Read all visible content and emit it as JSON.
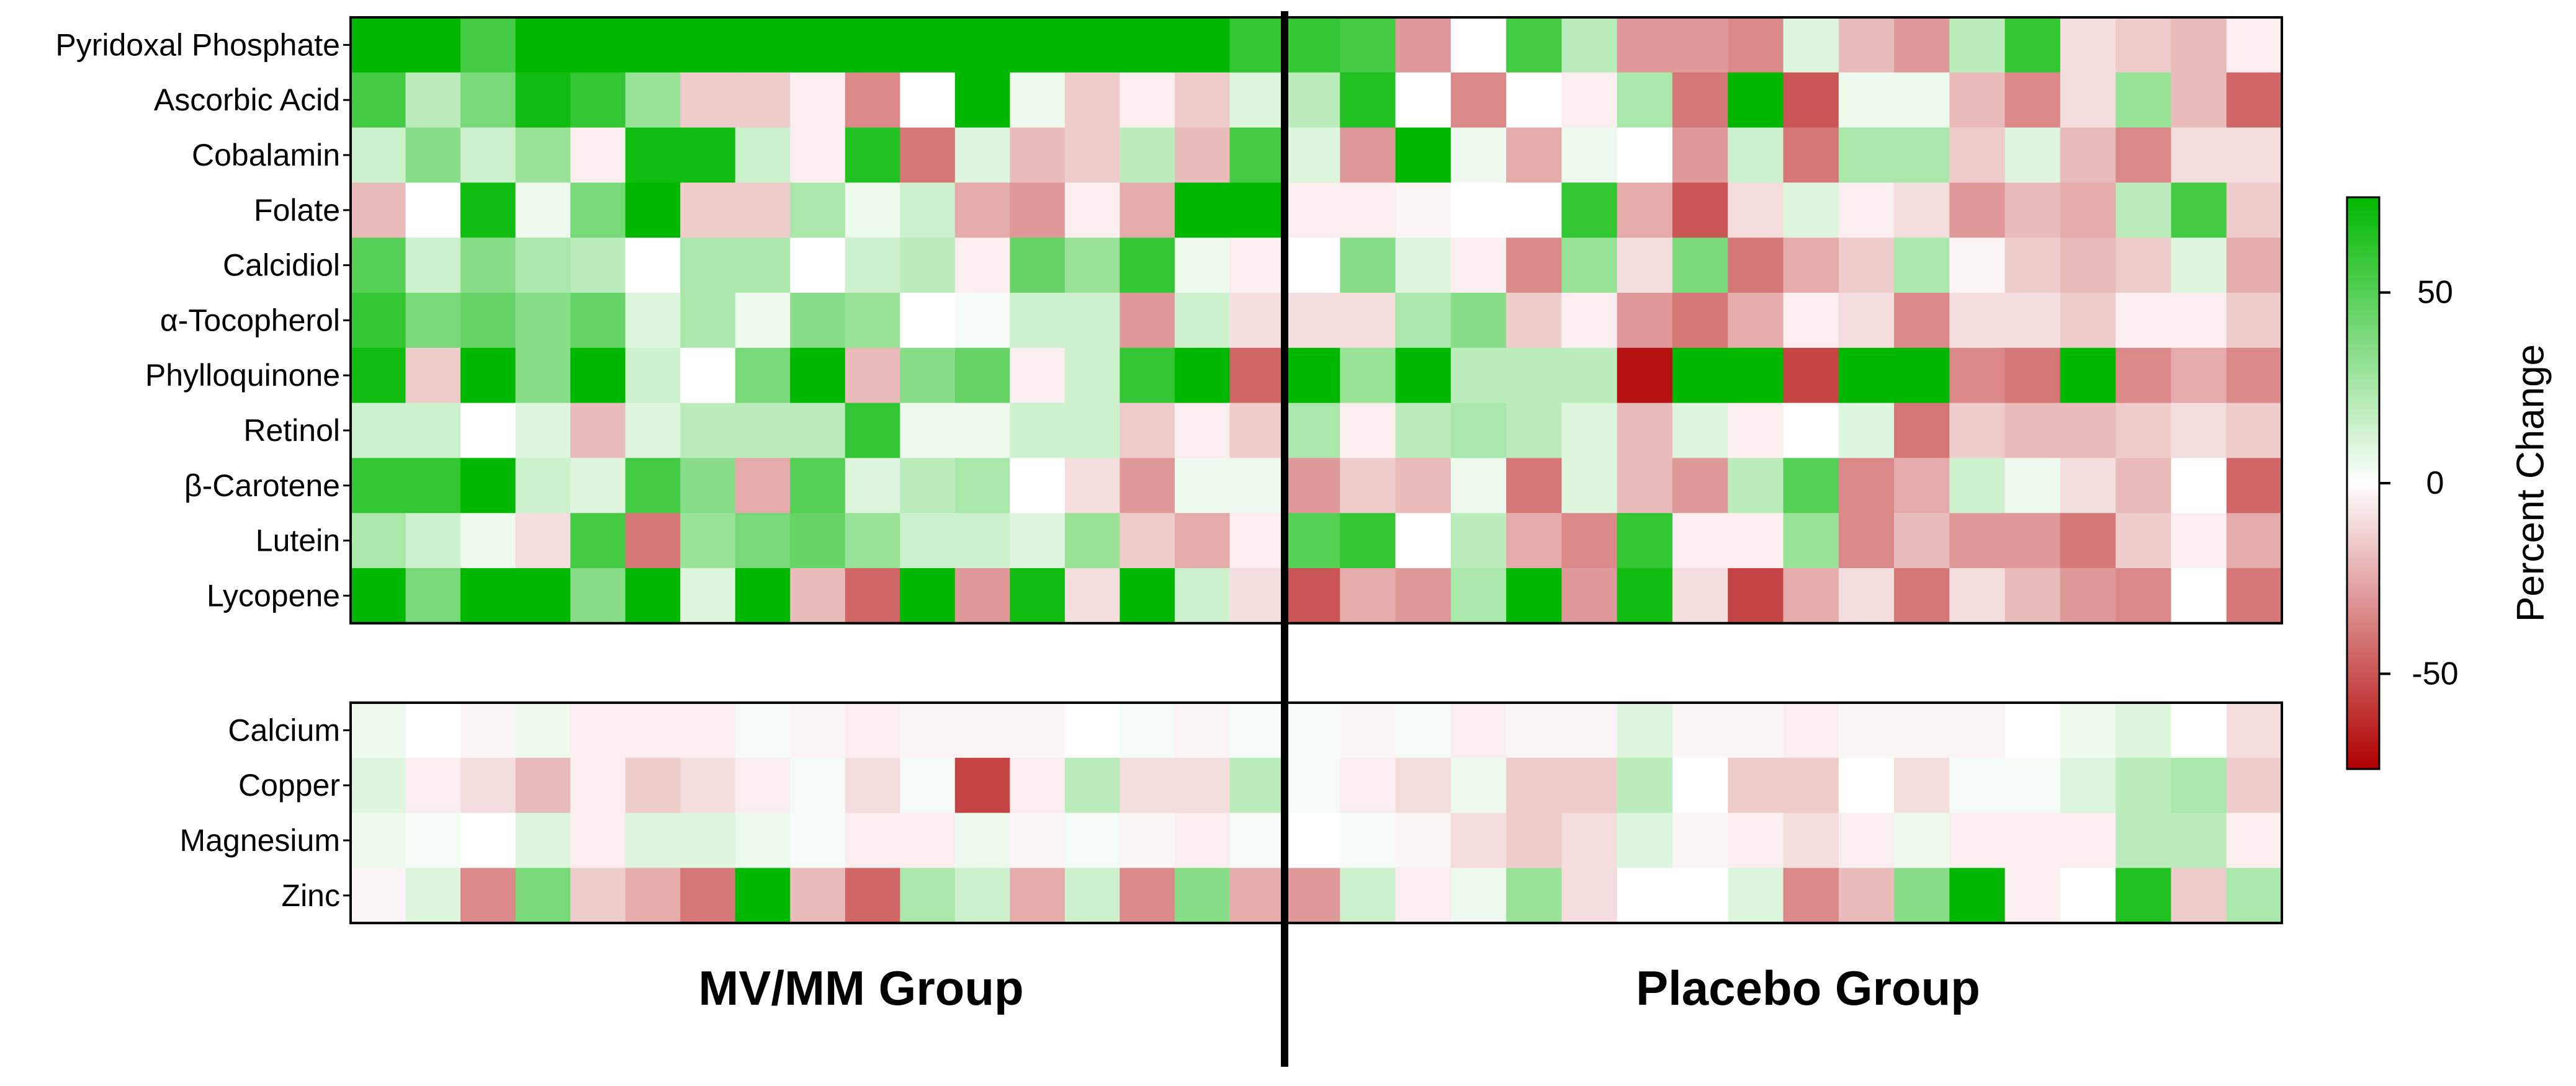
{
  "chart_data": {
    "type": "heatmap",
    "color_scale": {
      "label": "Percent Change",
      "range": [
        -75,
        75
      ],
      "ticks": [
        "50",
        "0",
        "-50"
      ],
      "tick_values": [
        50,
        0,
        -50
      ],
      "colors": {
        "high": "#00b800",
        "mid": "#ffffff",
        "low": "#b00000"
      }
    },
    "groups": [
      {
        "name": "MV/MM Group",
        "n_columns": 17
      },
      {
        "name": "Placebo Group",
        "n_columns": 18
      }
    ],
    "panels": [
      {
        "rows": [
          {
            "label": "Pyridoxal Phosphate",
            "values": [
              75,
              75,
              55,
              75,
              75,
              75,
              75,
              75,
              75,
              75,
              75,
              75,
              75,
              75,
              75,
              75,
              60,
              60,
              55,
              -30,
              0,
              55,
              20,
              -30,
              -30,
              -35,
              10,
              -20,
              -30,
              20,
              60,
              -10,
              -15,
              -20,
              -5
            ]
          },
          {
            "label": "Ascorbic Acid",
            "values": [
              55,
              20,
              40,
              70,
              60,
              30,
              -15,
              -15,
              -5,
              -35,
              0,
              75,
              5,
              -15,
              -5,
              -15,
              10,
              20,
              65,
              0,
              -35,
              0,
              -5,
              25,
              -40,
              75,
              -50,
              5,
              5,
              -20,
              -35,
              -10,
              30,
              -20,
              -45
            ]
          },
          {
            "label": "Cobalamin",
            "values": [
              15,
              35,
              15,
              30,
              -5,
              70,
              70,
              15,
              -5,
              65,
              -40,
              10,
              -20,
              -15,
              20,
              -20,
              55,
              10,
              -30,
              75,
              5,
              -25,
              5,
              0,
              -30,
              15,
              -40,
              25,
              25,
              -15,
              10,
              -20,
              -35,
              -10,
              -10
            ]
          },
          {
            "label": "Folate",
            "values": [
              -20,
              0,
              70,
              5,
              40,
              75,
              -15,
              -15,
              25,
              5,
              15,
              -25,
              -30,
              -5,
              -25,
              75,
              75,
              -5,
              -5,
              -3,
              0,
              0,
              60,
              -25,
              -50,
              -10,
              10,
              -5,
              -10,
              -30,
              -20,
              -25,
              20,
              55,
              -15
            ]
          },
          {
            "label": "Calcidiol",
            "values": [
              50,
              15,
              35,
              25,
              20,
              0,
              25,
              25,
              0,
              15,
              20,
              -5,
              45,
              30,
              60,
              5,
              -5,
              0,
              35,
              10,
              -5,
              -35,
              30,
              -10,
              40,
              -40,
              -25,
              -15,
              25,
              -3,
              -15,
              -20,
              -15,
              10,
              -25
            ]
          },
          {
            "label": "α-Tocopherol",
            "values": [
              60,
              40,
              45,
              35,
              45,
              10,
              25,
              5,
              35,
              30,
              0,
              3,
              15,
              15,
              -30,
              15,
              -10,
              -10,
              -10,
              25,
              35,
              -15,
              -5,
              -30,
              -40,
              -25,
              -5,
              -10,
              -35,
              -10,
              -10,
              -15,
              -5,
              -5,
              -15
            ]
          },
          {
            "label": "Phylloquinone",
            "values": [
              70,
              -15,
              75,
              35,
              75,
              15,
              0,
              40,
              75,
              -20,
              35,
              45,
              -5,
              15,
              60,
              75,
              -45,
              75,
              30,
              75,
              20,
              20,
              20,
              -70,
              75,
              75,
              -55,
              75,
              75,
              -35,
              -40,
              75,
              -35,
              -25,
              -35
            ]
          },
          {
            "label": "Retinol",
            "values": [
              15,
              15,
              0,
              10,
              -20,
              10,
              20,
              20,
              20,
              60,
              5,
              5,
              15,
              15,
              -15,
              -5,
              -15,
              25,
              -5,
              20,
              25,
              20,
              10,
              -20,
              10,
              -5,
              0,
              10,
              -40,
              -15,
              -20,
              -20,
              -15,
              -10,
              -15
            ]
          },
          {
            "label": "β-Carotene",
            "values": [
              60,
              60,
              75,
              15,
              10,
              55,
              35,
              -25,
              50,
              10,
              20,
              25,
              0,
              -10,
              -30,
              5,
              5,
              -30,
              -15,
              -20,
              5,
              -40,
              10,
              -20,
              -30,
              20,
              50,
              -35,
              -25,
              15,
              5,
              -10,
              -20,
              0,
              -45
            ]
          },
          {
            "label": "Lutein",
            "values": [
              25,
              15,
              5,
              -10,
              55,
              -40,
              30,
              40,
              45,
              30,
              15,
              15,
              10,
              30,
              -15,
              -25,
              -5,
              50,
              60,
              0,
              20,
              -25,
              -35,
              60,
              -5,
              -5,
              30,
              -35,
              -20,
              -30,
              -30,
              -40,
              -15,
              -5,
              -25
            ]
          },
          {
            "label": "Lycopene",
            "values": [
              75,
              40,
              75,
              75,
              35,
              75,
              10,
              75,
              -20,
              -45,
              75,
              -30,
              70,
              -10,
              75,
              15,
              -10,
              -50,
              -25,
              -30,
              25,
              75,
              -30,
              70,
              -10,
              -55,
              -25,
              -10,
              -40,
              -10,
              -20,
              -30,
              -35,
              0,
              -40
            ]
          }
        ]
      },
      {
        "rows": [
          {
            "label": "Calcium",
            "values": [
              5,
              0,
              -3,
              5,
              -5,
              -5,
              -5,
              3,
              -3,
              -5,
              -3,
              -3,
              -3,
              0,
              3,
              -3,
              3,
              3,
              -3,
              3,
              -5,
              -3,
              -3,
              10,
              -3,
              -3,
              -5,
              -3,
              -3,
              -3,
              0,
              5,
              10,
              0,
              -10
            ]
          },
          {
            "label": "Copper",
            "values": [
              10,
              -5,
              -10,
              -20,
              -5,
              -15,
              -10,
              -5,
              3,
              -10,
              3,
              -55,
              -5,
              20,
              -10,
              -10,
              20,
              3,
              -5,
              -10,
              5,
              -15,
              -15,
              20,
              0,
              -15,
              -15,
              0,
              -10,
              3,
              3,
              10,
              20,
              25,
              -15
            ]
          },
          {
            "label": "Magnesium",
            "values": [
              5,
              3,
              0,
              10,
              -5,
              10,
              10,
              5,
              3,
              -5,
              -5,
              5,
              -3,
              3,
              -3,
              -5,
              3,
              0,
              3,
              -3,
              -10,
              -15,
              -10,
              10,
              -3,
              -5,
              -10,
              -5,
              5,
              -5,
              -5,
              -5,
              20,
              20,
              -5
            ]
          },
          {
            "label": "Zinc",
            "values": [
              -3,
              10,
              -35,
              40,
              -15,
              -25,
              -40,
              75,
              -20,
              -45,
              25,
              15,
              -25,
              15,
              -35,
              35,
              -25,
              -30,
              15,
              -5,
              5,
              30,
              -10,
              0,
              0,
              10,
              -35,
              -20,
              35,
              75,
              -5,
              0,
              65,
              -15,
              25
            ]
          }
        ]
      }
    ]
  }
}
